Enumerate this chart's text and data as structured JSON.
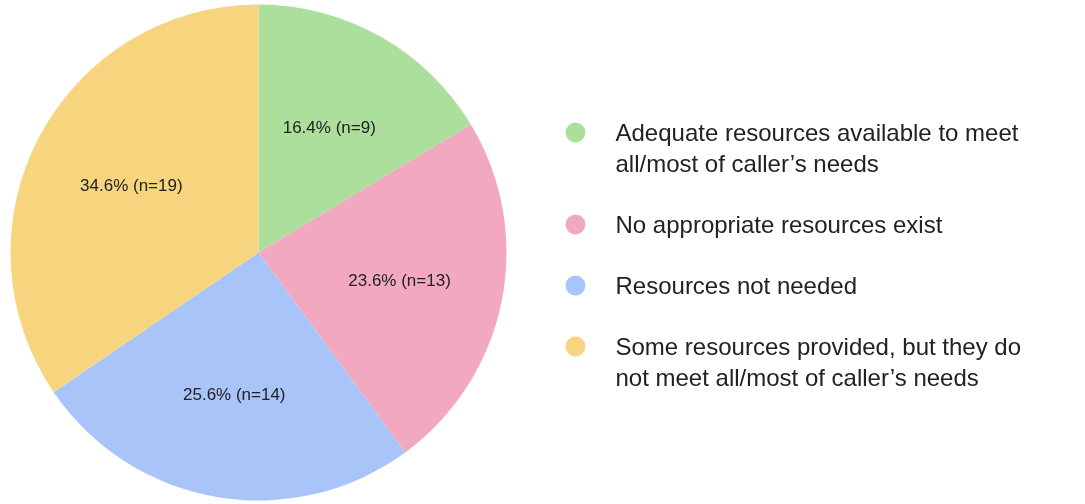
{
  "chart_data": {
    "type": "pie",
    "categories": [
      "Adequate resources available to meet all/most of caller’s needs",
      "No appropriate resources exist",
      "Resources not needed",
      "Some resources provided, but they do not meet all/most of caller’s needs"
    ],
    "values": [
      16.4,
      23.6,
      25.6,
      34.6
    ],
    "colors": [
      "#abdf9b",
      "#f2a9c0",
      "#a9c4f9",
      "#f7d57f"
    ],
    "value_labels": [
      "16.4% (n=9)",
      "23.6% (n=13)",
      "25.6% (n=14)",
      "34.6% (n=19)"
    ],
    "legend": "right"
  }
}
